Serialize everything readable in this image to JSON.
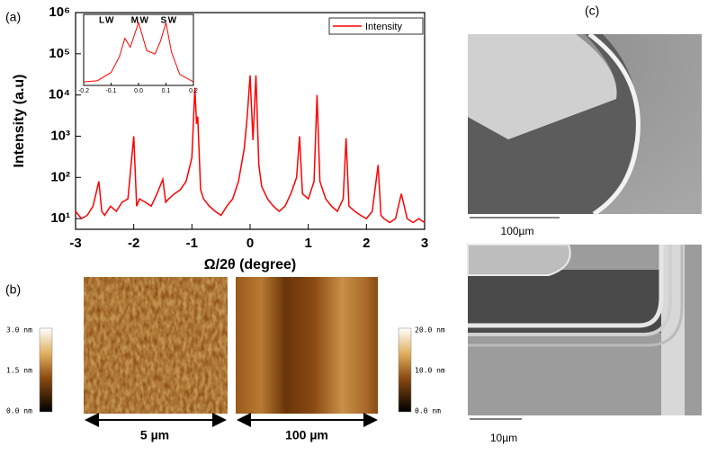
{
  "chart_data": [
    {
      "type": "line",
      "panel_label": "(a)",
      "x_label": "Ω/2θ (degree)",
      "y_label": "Intensity (a.u)",
      "x": [
        -3,
        -2.9,
        -2.8,
        -2.7,
        -2.6,
        -2.55,
        -2.5,
        -2.4,
        -2.3,
        -2.2,
        -2.1,
        -2.0,
        -1.95,
        -1.9,
        -1.8,
        -1.7,
        -1.6,
        -1.5,
        -1.45,
        -1.4,
        -1.3,
        -1.2,
        -1.1,
        -1.0,
        -0.95,
        -0.92,
        -0.9,
        -0.85,
        -0.8,
        -0.7,
        -0.6,
        -0.5,
        -0.4,
        -0.3,
        -0.2,
        -0.1,
        -0.05,
        0,
        0.05,
        0.1,
        0.15,
        0.2,
        0.3,
        0.4,
        0.5,
        0.6,
        0.7,
        0.8,
        0.85,
        0.9,
        1.0,
        1.1,
        1.15,
        1.2,
        1.3,
        1.4,
        1.5,
        1.6,
        1.65,
        1.7,
        1.8,
        1.9,
        2.0,
        2.1,
        2.2,
        2.25,
        2.3,
        2.4,
        2.5,
        2.6,
        2.7,
        2.8,
        2.9,
        3
      ],
      "series": [
        {
          "name": "Intensity",
          "color": "#ff0000",
          "values": [
            15,
            10,
            12,
            20,
            80,
            15,
            12,
            20,
            15,
            25,
            30,
            1000,
            20,
            30,
            25,
            20,
            40,
            90,
            25,
            30,
            40,
            50,
            80,
            300,
            15000,
            2000,
            3000,
            50,
            30,
            20,
            15,
            12,
            20,
            30,
            80,
            500,
            3000,
            30000,
            800,
            30000,
            200,
            60,
            30,
            20,
            15,
            20,
            40,
            100,
            1000,
            40,
            30,
            80,
            10000,
            80,
            30,
            20,
            15,
            30,
            900,
            20,
            15,
            12,
            10,
            15,
            200,
            12,
            10,
            8,
            10,
            40,
            10,
            8,
            10,
            8
          ]
        }
      ],
      "xlim": [
        -3,
        3
      ],
      "xticks": [
        -3,
        -2,
        -1,
        0,
        1,
        2,
        3
      ],
      "ylim": [
        5.5,
        1000000
      ],
      "log_y": true,
      "yticks": [
        {
          "value": 10,
          "label": "10¹"
        },
        {
          "value": 100,
          "label": "10²"
        },
        {
          "value": 1000,
          "label": "10³"
        },
        {
          "value": 10000,
          "label": "10⁴"
        },
        {
          "value": 100000,
          "label": "10⁵"
        },
        {
          "value": 1000000,
          "label": "10⁶"
        }
      ],
      "legend": "upper right"
    },
    {
      "type": "line",
      "annotations": [
        "LW",
        "MW",
        "SW"
      ],
      "x": [
        -0.2,
        -0.15,
        -0.1,
        -0.07,
        -0.05,
        -0.03,
        0,
        0.03,
        0.06,
        0.08,
        0.1,
        0.12,
        0.15,
        0.2
      ],
      "series": [
        {
          "name": null,
          "color": "#ff0000",
          "values": [
            5,
            6,
            20,
            200,
            3000,
            800,
            30000,
            500,
            300,
            2000,
            30000,
            400,
            15,
            5
          ]
        }
      ],
      "xlim": [
        -0.2,
        0.2
      ],
      "xticks": [
        -0.2,
        -0.1,
        {
          "value": 0,
          "label": "0.0"
        },
        0.1,
        0.2
      ],
      "ylim": [
        3,
        100000
      ],
      "log_y": true
    }
  ],
  "afm": {
    "panel_label": "(b)",
    "colorbar_left": [
      "3.0 nm",
      "1.5 nm",
      "0.0 nm"
    ],
    "colorbar_right": [
      "20.0 nm",
      "10.0 nm",
      "0.0 nm"
    ],
    "scale_labels": [
      "5 µm",
      "100 µm"
    ]
  },
  "sem": {
    "panel_label": "(c)",
    "scale_labels": [
      "100µm",
      "10µm"
    ]
  }
}
